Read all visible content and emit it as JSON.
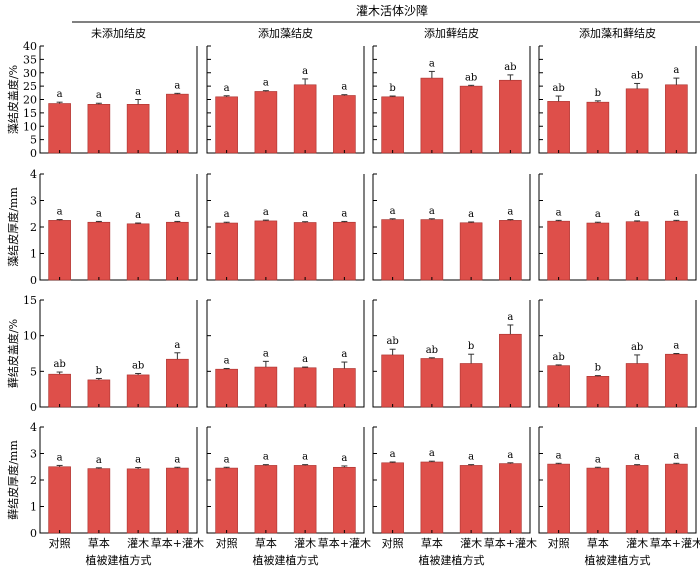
{
  "figure": {
    "supertitle": "灌木活体沙障",
    "x_axis_label": "植被建植方式",
    "colors": {
      "bar": "#de4f4a",
      "bar_edge": "#a8302c",
      "axis": "#000000"
    }
  },
  "chart_data": {
    "type": "bar",
    "categories": [
      "对照",
      "草本",
      "灌木",
      "草本+灌木"
    ],
    "panel_titles": [
      "未添加结皮",
      "添加藻结皮",
      "添加藓结皮",
      "添加藻和藓结皮"
    ],
    "rows": [
      {
        "ylabel": "藻结皮盖度/%",
        "ylim": [
          0,
          40
        ],
        "ticks": [
          "0",
          "5",
          "10",
          "15",
          "20",
          "25",
          "30",
          "35",
          "40"
        ],
        "tick_values": [
          0,
          5,
          10,
          15,
          20,
          25,
          30,
          35,
          40
        ],
        "panels": [
          {
            "values": [
              18.5,
              18.2,
              18.2,
              22.0
            ],
            "errors": [
              0.5,
              0.4,
              1.8,
              0.3
            ],
            "letters": [
              "a",
              "a",
              "a",
              "a"
            ]
          },
          {
            "values": [
              21.0,
              23.0,
              25.5,
              21.5
            ],
            "errors": [
              0.4,
              0.3,
              2.2,
              0.3
            ],
            "letters": [
              "a",
              "a",
              "a",
              "a"
            ]
          },
          {
            "values": [
              21.0,
              28.0,
              25.0,
              27.2
            ],
            "errors": [
              0.3,
              2.5,
              0.3,
              2.0
            ],
            "letters": [
              "b",
              "a",
              "ab",
              "ab"
            ]
          },
          {
            "values": [
              19.3,
              19.0,
              24.0,
              25.5
            ],
            "errors": [
              2.0,
              0.5,
              2.0,
              2.5
            ],
            "letters": [
              "ab",
              "b",
              "ab",
              "a"
            ]
          }
        ]
      },
      {
        "ylabel": "藻结皮厚度/mm",
        "ylim": [
          0,
          4
        ],
        "ticks": [
          "0",
          "1",
          "2",
          "3",
          "4"
        ],
        "tick_values": [
          0,
          1,
          2,
          3,
          4
        ],
        "panels": [
          {
            "values": [
              2.25,
              2.18,
              2.12,
              2.18
            ],
            "errors": [
              0.03,
              0.03,
              0.03,
              0.03
            ],
            "letters": [
              "a",
              "a",
              "a",
              "a"
            ]
          },
          {
            "values": [
              2.15,
              2.23,
              2.17,
              2.18
            ],
            "errors": [
              0.03,
              0.03,
              0.03,
              0.03
            ],
            "letters": [
              "a",
              "a",
              "a",
              "a"
            ]
          },
          {
            "values": [
              2.28,
              2.28,
              2.16,
              2.25
            ],
            "errors": [
              0.03,
              0.03,
              0.03,
              0.03
            ],
            "letters": [
              "a",
              "a",
              "a",
              "a"
            ]
          },
          {
            "values": [
              2.22,
              2.15,
              2.2,
              2.22
            ],
            "errors": [
              0.03,
              0.03,
              0.03,
              0.03
            ],
            "letters": [
              "a",
              "a",
              "a",
              "a"
            ]
          }
        ]
      },
      {
        "ylabel": "藓结皮盖度/%",
        "ylim": [
          0,
          15
        ],
        "ticks": [
          "0",
          "5",
          "10",
          "15"
        ],
        "tick_values": [
          0,
          5,
          10,
          15
        ],
        "panels": [
          {
            "values": [
              4.6,
              3.8,
              4.5,
              6.7
            ],
            "errors": [
              0.3,
              0.2,
              0.2,
              0.9
            ],
            "letters": [
              "ab",
              "b",
              "ab",
              "a"
            ]
          },
          {
            "values": [
              5.3,
              5.6,
              5.5,
              5.4
            ],
            "errors": [
              0.1,
              0.8,
              0.1,
              0.9
            ],
            "letters": [
              "a",
              "a",
              "a",
              "a"
            ]
          },
          {
            "values": [
              7.3,
              6.8,
              6.1,
              10.2
            ],
            "errors": [
              0.8,
              0.1,
              1.3,
              1.3
            ],
            "letters": [
              "ab",
              "ab",
              "b",
              "a"
            ]
          },
          {
            "values": [
              5.8,
              4.3,
              6.1,
              7.4
            ],
            "errors": [
              0.1,
              0.1,
              1.2,
              0.1
            ],
            "letters": [
              "ab",
              "b",
              "ab",
              "a"
            ]
          }
        ]
      },
      {
        "ylabel": "藓结皮厚度/mm",
        "ylim": [
          0,
          4
        ],
        "ticks": [
          "0",
          "1",
          "2",
          "3",
          "4"
        ],
        "tick_values": [
          0,
          1,
          2,
          3,
          4
        ],
        "panels": [
          {
            "values": [
              2.5,
              2.43,
              2.42,
              2.45
            ],
            "errors": [
              0.05,
              0.03,
              0.05,
              0.03
            ],
            "letters": [
              "a",
              "a",
              "a",
              "a"
            ]
          },
          {
            "values": [
              2.45,
              2.55,
              2.55,
              2.48
            ],
            "errors": [
              0.03,
              0.03,
              0.03,
              0.05
            ],
            "letters": [
              "a",
              "a",
              "a",
              "a"
            ]
          },
          {
            "values": [
              2.65,
              2.68,
              2.55,
              2.62
            ],
            "errors": [
              0.03,
              0.03,
              0.03,
              0.03
            ],
            "letters": [
              "a",
              "a",
              "a",
              "a"
            ]
          },
          {
            "values": [
              2.6,
              2.45,
              2.55,
              2.6
            ],
            "errors": [
              0.03,
              0.03,
              0.03,
              0.03
            ],
            "letters": [
              "a",
              "a",
              "a",
              "a"
            ]
          }
        ]
      }
    ]
  }
}
